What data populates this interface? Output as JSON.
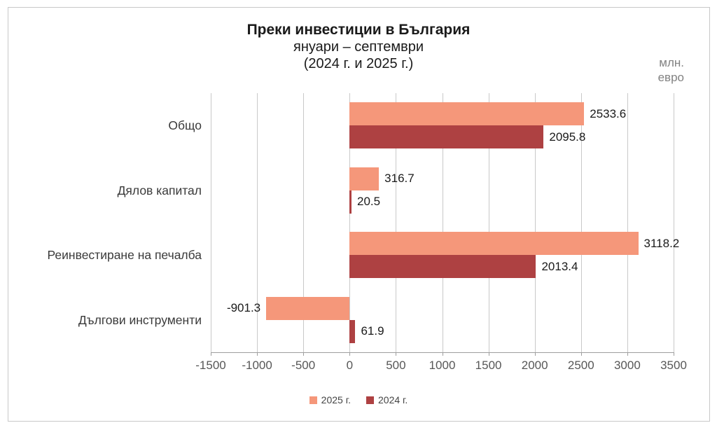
{
  "chart_data": {
    "type": "bar",
    "orientation": "horizontal",
    "title": "Преки инвестиции в България",
    "subtitle": "януари – септември",
    "subtitle2": "(2024 г. и 2025 г.)",
    "unit_label": [
      "млн.",
      "евро"
    ],
    "categories": [
      "Общо",
      "Дялов капитал",
      "Реинвестиране на печалба",
      "Дългови инструменти"
    ],
    "series": [
      {
        "name": "2025 г.",
        "color": "#F5977A",
        "values": [
          2533.6,
          316.7,
          3118.2,
          -901.3
        ]
      },
      {
        "name": "2024 г.",
        "color": "#AE4142",
        "values": [
          2095.8,
          20.5,
          2013.4,
          61.9
        ]
      }
    ],
    "xlim": [
      -1500,
      3500
    ],
    "xticks": [
      -1500,
      -1000,
      -500,
      0,
      500,
      1000,
      1500,
      2000,
      2500,
      3000,
      3500
    ],
    "grid": true,
    "value_labels": true,
    "legend_position": "bottom",
    "colors": {
      "gridline": "#c9c9c9",
      "axis": "#9e9e9e",
      "tick_text": "#575757",
      "category_text": "#3a3a3a",
      "value_text": "#1a1a1a",
      "unit_text": "#828282"
    }
  }
}
